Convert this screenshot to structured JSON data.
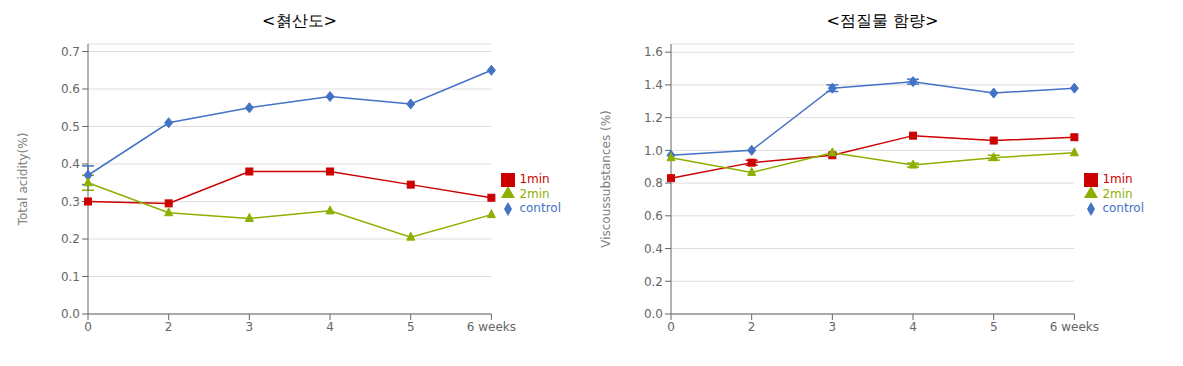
{
  "chart_data": [
    {
      "type": "line",
      "title": "<쳙산도>",
      "categories": [
        "0",
        "2",
        "3",
        "4",
        "5",
        "6 weeks"
      ],
      "y_label": "Total acidity(%)",
      "ylim": [
        0.0,
        0.72
      ],
      "yticks": [
        {
          "value": 0.0,
          "label": "0.0"
        },
        0.1,
        0.2,
        0.3,
        0.4,
        0.5,
        0.6,
        0.7
      ],
      "grid": "y",
      "legend": "right",
      "series": [
        {
          "name": "control",
          "color": "#4472C4",
          "marker": "diamond",
          "values": [
            0.37,
            0.51,
            0.55,
            0.58,
            0.56,
            0.65
          ],
          "errors": [
            0.025,
            0,
            0,
            0,
            0,
            0
          ]
        },
        {
          "name": "1min",
          "color": "#CC0000",
          "marker": "square",
          "values": [
            0.3,
            0.295,
            0.38,
            0.38,
            0.345,
            0.31
          ],
          "errors": [
            0,
            0,
            0,
            0,
            0,
            0
          ]
        },
        {
          "name": "2min",
          "color": "#8DB000",
          "marker": "triangle",
          "values": [
            0.35,
            0.27,
            0.255,
            0.275,
            0.205,
            0.265
          ],
          "errors": [
            0.02,
            0,
            0,
            0,
            0,
            0
          ]
        }
      ]
    },
    {
      "type": "line",
      "title": "<점질물 함량>",
      "categories": [
        "0",
        "2",
        "3",
        "4",
        "5",
        "6 weeks"
      ],
      "y_label": "Viscoussubstances (%)",
      "ylim": [
        0.0,
        1.65
      ],
      "yticks": [
        {
          "value": 0.0,
          "label": "0.0"
        },
        0.2,
        0.4,
        0.6,
        0.8,
        {
          "value": 1.0,
          "label": "1.0"
        },
        1.2,
        1.4,
        1.6
      ],
      "grid": "y",
      "legend": "right",
      "series": [
        {
          "name": "control",
          "color": "#4472C4",
          "marker": "diamond",
          "values": [
            0.97,
            1.0,
            1.38,
            1.42,
            1.35,
            1.38
          ],
          "errors": [
            0,
            0,
            0.02,
            0.015,
            0,
            0
          ]
        },
        {
          "name": "1min",
          "color": "#CC0000",
          "marker": "square",
          "values": [
            0.83,
            0.925,
            0.97,
            1.09,
            1.06,
            1.08
          ],
          "errors": [
            0,
            0.015,
            0,
            0,
            0,
            0
          ]
        },
        {
          "name": "2min",
          "color": "#8DB000",
          "marker": "triangle",
          "values": [
            0.955,
            0.865,
            0.985,
            0.91,
            0.955,
            0.985
          ],
          "errors": [
            0,
            0,
            0,
            0.012,
            0.015,
            0
          ]
        }
      ]
    }
  ]
}
